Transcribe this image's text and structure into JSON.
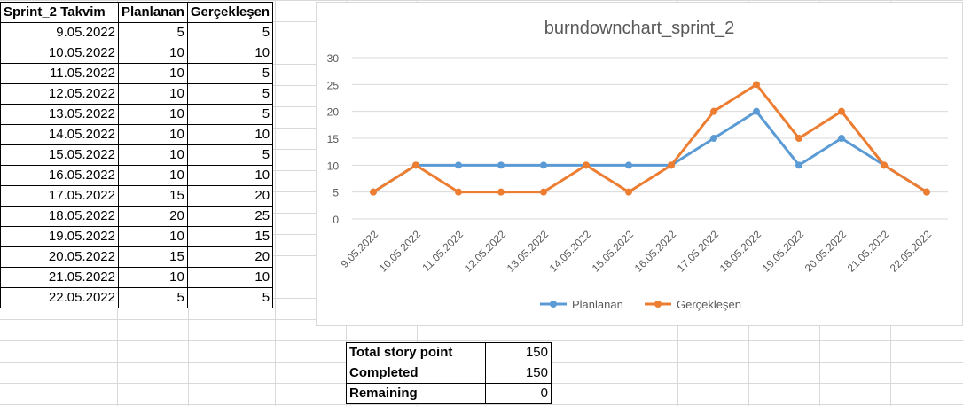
{
  "sheet": {
    "headers": [
      "Sprint_2 Takvim",
      "Planlanan",
      "Gerçekleşen"
    ],
    "rows": [
      [
        "9.05.2022",
        "5",
        "5"
      ],
      [
        "10.05.2022",
        "10",
        "10"
      ],
      [
        "11.05.2022",
        "10",
        "5"
      ],
      [
        "12.05.2022",
        "10",
        "5"
      ],
      [
        "13.05.2022",
        "10",
        "5"
      ],
      [
        "14.05.2022",
        "10",
        "10"
      ],
      [
        "15.05.2022",
        "10",
        "5"
      ],
      [
        "16.05.2022",
        "10",
        "10"
      ],
      [
        "17.05.2022",
        "15",
        "20"
      ],
      [
        "18.05.2022",
        "20",
        "25"
      ],
      [
        "19.05.2022",
        "10",
        "15"
      ],
      [
        "20.05.2022",
        "15",
        "20"
      ],
      [
        "21.05.2022",
        "10",
        "10"
      ],
      [
        "22.05.2022",
        "5",
        "5"
      ]
    ]
  },
  "summary": [
    {
      "label": "Total story point",
      "value": "150"
    },
    {
      "label": "Completed",
      "value": "150"
    },
    {
      "label": "Remaining",
      "value": "0"
    }
  ],
  "chart_data": {
    "type": "line",
    "title": "burndownchart_sprint_2",
    "categories": [
      "9.05.2022",
      "10.05.2022",
      "11.05.2022",
      "12.05.2022",
      "13.05.2022",
      "14.05.2022",
      "15.05.2022",
      "16.05.2022",
      "17.05.2022",
      "18.05.2022",
      "19.05.2022",
      "20.05.2022",
      "21.05.2022",
      "22.05.2022"
    ],
    "series": [
      {
        "name": "Planlanan",
        "color": "#5b9bd5",
        "values": [
          5,
          10,
          10,
          10,
          10,
          10,
          10,
          10,
          15,
          20,
          10,
          15,
          10,
          5
        ]
      },
      {
        "name": "Gerçekleşen",
        "color": "#ed7d31",
        "values": [
          5,
          10,
          5,
          5,
          5,
          10,
          5,
          10,
          20,
          25,
          15,
          20,
          10,
          5
        ]
      }
    ],
    "yticks": [
      "0",
      "5",
      "10",
      "15",
      "20",
      "25",
      "30"
    ],
    "ylim": [
      0,
      30
    ],
    "grid": true,
    "legend": "bottom"
  }
}
